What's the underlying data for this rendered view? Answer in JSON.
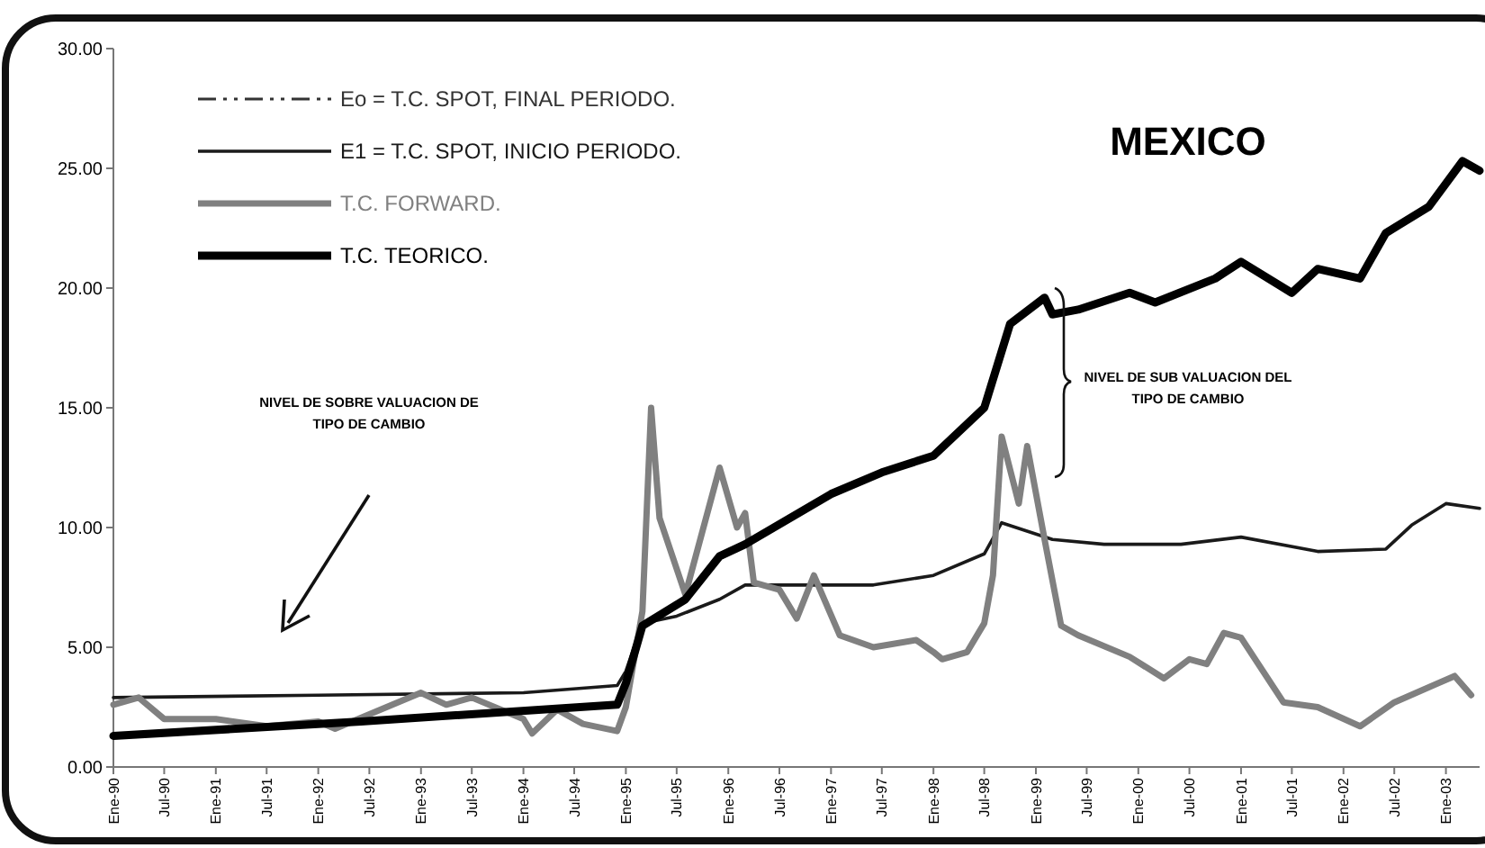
{
  "chart_data": {
    "type": "line",
    "title": "MEXICO",
    "xlim": [
      "1990-01",
      "2003-05"
    ],
    "ylim": [
      0,
      30
    ],
    "yticks": [
      {
        "value": 0,
        "label": "0.00"
      },
      {
        "value": 5,
        "label": "5.00"
      },
      {
        "value": 10,
        "label": "10.00"
      },
      {
        "value": 15,
        "label": "15.00"
      },
      {
        "value": 20,
        "label": "20.00"
      },
      {
        "value": 25,
        "label": "25.00"
      },
      {
        "value": 30,
        "label": "30.00"
      }
    ],
    "xticks": [
      {
        "value": "1990-01",
        "label": "Ene-90"
      },
      {
        "value": "1990-07",
        "label": "Jul-90"
      },
      {
        "value": "1991-01",
        "label": "Ene-91"
      },
      {
        "value": "1991-07",
        "label": "Jul-91"
      },
      {
        "value": "1992-01",
        "label": "Ene-92"
      },
      {
        "value": "1992-07",
        "label": "Jul-92"
      },
      {
        "value": "1993-01",
        "label": "Ene-93"
      },
      {
        "value": "1993-07",
        "label": "Jul-93"
      },
      {
        "value": "1994-01",
        "label": "Ene-94"
      },
      {
        "value": "1994-07",
        "label": "Jul-94"
      },
      {
        "value": "1995-01",
        "label": "Ene-95"
      },
      {
        "value": "1995-07",
        "label": "Jul-95"
      },
      {
        "value": "1996-01",
        "label": "Ene-96"
      },
      {
        "value": "1996-07",
        "label": "Jul-96"
      },
      {
        "value": "1997-01",
        "label": "Ene-97"
      },
      {
        "value": "1997-07",
        "label": "Jul-97"
      },
      {
        "value": "1998-01",
        "label": "Ene-98"
      },
      {
        "value": "1998-07",
        "label": "Jul-98"
      },
      {
        "value": "1999-01",
        "label": "Ene-99"
      },
      {
        "value": "1999-07",
        "label": "Jul-99"
      },
      {
        "value": "2000-01",
        "label": "Ene-00"
      },
      {
        "value": "2000-07",
        "label": "Jul-00"
      },
      {
        "value": "2001-01",
        "label": "Ene-01"
      },
      {
        "value": "2001-07",
        "label": "Jul-01"
      },
      {
        "value": "2002-01",
        "label": "Ene-02"
      },
      {
        "value": "2002-07",
        "label": "Jul-02"
      },
      {
        "value": "2003-01",
        "label": "Ene-03"
      }
    ],
    "legend": "top left",
    "grid": false,
    "annotations": [
      "NIVEL DE SOBRE VALUACION DE\nTIPO DE CAMBIO",
      "NIVEL DE SUB VALUACION DEL\nTIPO DE CAMBIO"
    ],
    "series": [
      {
        "name": "Eo =  T.C. SPOT, FINAL PERIODO.",
        "color": "#333333",
        "line_style": "dashed"
      },
      {
        "name": "E1 =  T.C. SPOT, INICIO PERIODO.",
        "color": "#1a1a1a",
        "line_style": "solid",
        "x": [
          "1990-01",
          "1992-01",
          "1994-01",
          "1994-12",
          "1995-01",
          "1995-03",
          "1995-07",
          "1995-12",
          "1996-03",
          "1996-09",
          "1997-06",
          "1998-01",
          "1998-07",
          "1998-09",
          "1999-03",
          "1999-09",
          "2000-06",
          "2001-01",
          "2001-10",
          "2002-06",
          "2002-09",
          "2003-01",
          "2003-05"
        ],
        "values": [
          2.9,
          3.0,
          3.1,
          3.4,
          4.0,
          6.0,
          6.3,
          7.0,
          7.6,
          7.6,
          7.6,
          8.0,
          8.9,
          10.2,
          9.5,
          9.3,
          9.3,
          9.6,
          9.0,
          9.1,
          10.1,
          11.0,
          10.8
        ]
      },
      {
        "name": "T.C. FORWARD.",
        "color": "#808080",
        "line_style": "solid",
        "x": [
          "1990-01",
          "1990-04",
          "1990-07",
          "1991-01",
          "1991-07",
          "1992-01",
          "1992-03",
          "1992-07",
          "1993-01",
          "1993-04",
          "1993-07",
          "1994-01",
          "1994-02",
          "1994-05",
          "1994-08",
          "1994-12",
          "1995-01",
          "1995-03",
          "1995-04",
          "1995-05",
          "1995-08",
          "1995-12",
          "1996-02",
          "1996-03",
          "1996-04",
          "1996-07",
          "1996-09",
          "1996-11",
          "1997-02",
          "1997-06",
          "1997-11",
          "1998-01",
          "1998-02",
          "1998-05",
          "1998-07",
          "1998-08",
          "1998-09",
          "1998-11",
          "1998-12",
          "1999-02",
          "1999-04",
          "1999-06",
          "1999-12",
          "2000-04",
          "2000-07",
          "2000-09",
          "2000-11",
          "2001-01",
          "2001-06",
          "2001-10",
          "2002-03",
          "2002-07",
          "2003-02",
          "2003-04"
        ],
        "values": [
          2.6,
          2.9,
          2.0,
          2.0,
          1.7,
          1.9,
          1.6,
          2.2,
          3.1,
          2.6,
          2.9,
          2.0,
          1.4,
          2.4,
          1.8,
          1.5,
          2.5,
          6.5,
          15.0,
          10.4,
          7.2,
          12.5,
          10.0,
          10.6,
          7.7,
          7.4,
          6.2,
          8.0,
          5.5,
          5.0,
          5.3,
          4.8,
          4.5,
          4.8,
          6.0,
          8.0,
          13.8,
          11.0,
          13.4,
          9.5,
          5.9,
          5.5,
          4.6,
          3.7,
          4.5,
          4.3,
          5.6,
          5.4,
          2.7,
          2.5,
          1.7,
          2.7,
          3.8,
          3.0
        ]
      },
      {
        "name": "T.C. TEORICO.",
        "color": "#000000",
        "line_style": "solid",
        "x": [
          "1990-01",
          "1992-06",
          "1994-12",
          "1995-01",
          "1995-03",
          "1995-08",
          "1995-12",
          "1996-03",
          "1997-01",
          "1997-07",
          "1998-01",
          "1998-07",
          "1998-10",
          "1999-02",
          "1999-03",
          "1999-06",
          "1999-12",
          "2000-03",
          "2000-10",
          "2001-01",
          "2001-07",
          "2001-10",
          "2002-03",
          "2002-06",
          "2002-11",
          "2003-03",
          "2003-05"
        ],
        "values": [
          1.3,
          1.9,
          2.6,
          3.5,
          5.9,
          7.0,
          8.8,
          9.3,
          11.4,
          12.3,
          13.0,
          15.0,
          18.5,
          19.6,
          18.9,
          19.1,
          19.8,
          19.4,
          20.4,
          21.1,
          19.8,
          20.8,
          20.4,
          22.3,
          23.4,
          25.3,
          24.9
        ]
      }
    ]
  }
}
